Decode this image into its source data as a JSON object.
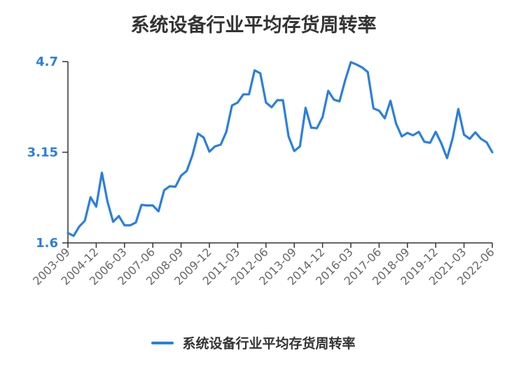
{
  "chart_data": {
    "type": "line",
    "title": "系统设备行业平均存货周转率",
    "xlabel": "",
    "ylabel": "",
    "ylim": [
      1.6,
      4.7
    ],
    "y_ticks": [
      "1.6",
      "3.15",
      "4.7"
    ],
    "x_tick_labels": [
      "2003-09",
      "2004-12",
      "2006-03",
      "2007-06",
      "2008-09",
      "2009-12",
      "2011-03",
      "2012-06",
      "2013-09",
      "2014-12",
      "2016-03",
      "2017-06",
      "2018-09",
      "2019-12",
      "2021-03",
      "2022-06"
    ],
    "legend_position": "bottom",
    "series": [
      {
        "name": "系统设备行业平均存货周转率",
        "color": "#2a7fe0",
        "x": [
          "2003-09",
          "2003-12",
          "2004-03",
          "2004-06",
          "2004-09",
          "2004-12",
          "2005-03",
          "2005-06",
          "2005-09",
          "2005-12",
          "2006-03",
          "2006-06",
          "2006-09",
          "2006-12",
          "2007-03",
          "2007-06",
          "2007-09",
          "2007-12",
          "2008-03",
          "2008-06",
          "2008-09",
          "2008-12",
          "2009-03",
          "2009-06",
          "2009-09",
          "2009-12",
          "2010-03",
          "2010-06",
          "2010-09",
          "2010-12",
          "2011-03",
          "2011-06",
          "2011-09",
          "2011-12",
          "2012-03",
          "2012-06",
          "2012-09",
          "2012-12",
          "2013-03",
          "2013-06",
          "2013-09",
          "2013-12",
          "2014-03",
          "2014-06",
          "2014-09",
          "2014-12",
          "2015-03",
          "2015-06",
          "2015-09",
          "2015-12",
          "2016-03",
          "2016-06",
          "2016-09",
          "2016-12",
          "2017-03",
          "2017-06",
          "2017-09",
          "2017-12",
          "2018-03",
          "2018-06",
          "2018-09",
          "2018-12",
          "2019-03",
          "2019-06",
          "2019-09",
          "2019-12",
          "2020-03",
          "2020-06",
          "2020-09",
          "2020-12",
          "2021-03",
          "2021-06",
          "2021-09",
          "2021-12",
          "2022-03",
          "2022-06"
        ],
        "values": [
          1.77,
          1.72,
          1.88,
          1.98,
          2.38,
          2.22,
          2.8,
          2.3,
          1.96,
          2.06,
          1.9,
          1.9,
          1.95,
          2.25,
          2.24,
          2.24,
          2.14,
          2.5,
          2.57,
          2.56,
          2.75,
          2.83,
          3.1,
          3.47,
          3.4,
          3.16,
          3.25,
          3.28,
          3.5,
          3.95,
          4.0,
          4.14,
          4.14,
          4.55,
          4.5,
          4.0,
          3.92,
          4.04,
          4.04,
          3.42,
          3.17,
          3.25,
          3.91,
          3.57,
          3.56,
          3.75,
          4.2,
          4.05,
          4.02,
          4.38,
          4.69,
          4.65,
          4.6,
          4.52,
          3.9,
          3.86,
          3.73,
          4.03,
          3.64,
          3.42,
          3.48,
          3.44,
          3.5,
          3.33,
          3.31,
          3.5,
          3.3,
          3.05,
          3.39,
          3.89,
          3.45,
          3.38,
          3.49,
          3.38,
          3.32,
          3.15
        ]
      }
    ]
  }
}
